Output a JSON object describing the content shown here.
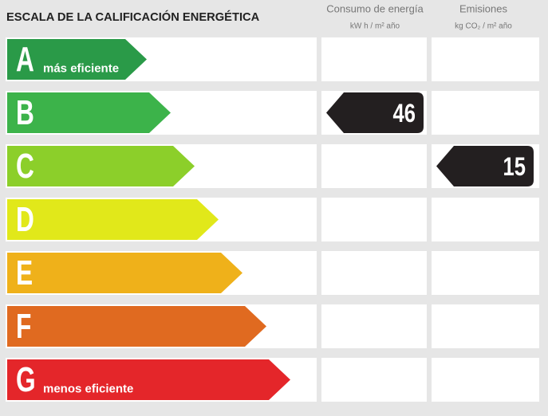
{
  "header": {
    "title": "ESCALA DE LA CALIFICACIÓN ENERGÉTICA",
    "columns": [
      {
        "title": "Consumo de energía",
        "unit": "kW h / m² año"
      },
      {
        "title": "Emisiones",
        "unit": "kg CO₂ / m² año"
      }
    ]
  },
  "rows": [
    {
      "letter": "A",
      "label": "más eficiente",
      "color": "#2a9a48"
    },
    {
      "letter": "B",
      "color": "#3cb34a",
      "consumption": 46
    },
    {
      "letter": "C",
      "color": "#8ccf2a",
      "emissions": 15
    },
    {
      "letter": "D",
      "color": "#e1e81a"
    },
    {
      "letter": "E",
      "color": "#efb11a"
    },
    {
      "letter": "F",
      "color": "#e06a20"
    },
    {
      "letter": "G",
      "label": "menos eficiente",
      "color": "#e4262a"
    }
  ]
}
